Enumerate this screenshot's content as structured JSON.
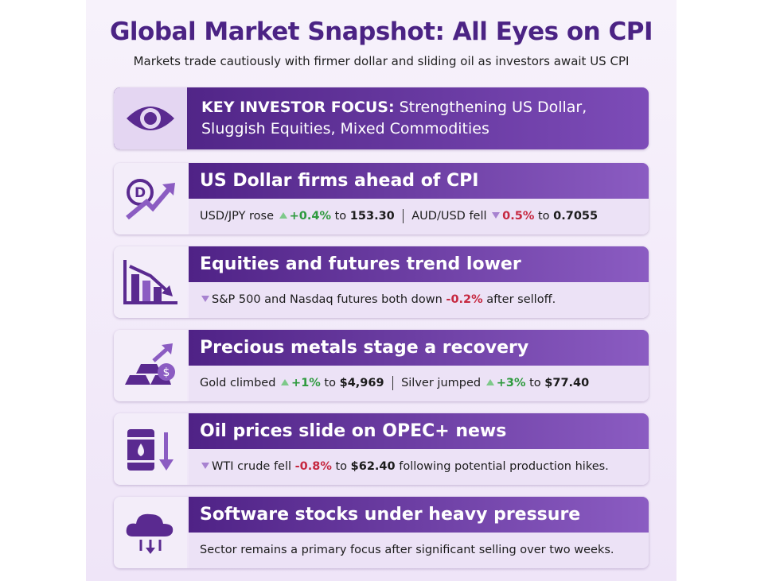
{
  "header": {
    "title": "Global Market Snapshot: All Eyes on CPI",
    "subtitle": "Markets trade cautiously with firmer dollar and sliding oil as investors await US CPI"
  },
  "focus": {
    "label": "KEY INVESTOR FOCUS:",
    "text": "Strengthening US Dollar, Sluggish Equities, Mixed Commodities"
  },
  "sections": [
    {
      "title": "US Dollar firms ahead of CPI",
      "body": [
        [
          {
            "text": "USD/JPY rose ",
            "tone": "plain"
          },
          {
            "text": "+0.4%",
            "tone": "up"
          },
          {
            "text": " to ",
            "tone": "plain"
          },
          {
            "text": "153.30",
            "tone": "bold"
          }
        ],
        [
          {
            "text": "AUD/USD fell ",
            "tone": "plain"
          },
          {
            "text": "0.5%",
            "tone": "down"
          },
          {
            "text": " to ",
            "tone": "plain"
          },
          {
            "text": "0.7055",
            "tone": "bold"
          }
        ]
      ]
    },
    {
      "title": "Equities and futures trend lower",
      "lead": "down",
      "body": [
        [
          {
            "text": "S&P 500 and Nasdaq futures both down ",
            "tone": "plain"
          },
          {
            "text": "-0.2%",
            "tone": "neg"
          },
          {
            "text": " after selloff.",
            "tone": "plain"
          }
        ]
      ]
    },
    {
      "title": "Precious metals stage a recovery",
      "body": [
        [
          {
            "text": "Gold climbed ",
            "tone": "plain"
          },
          {
            "text": "+1%",
            "tone": "up"
          },
          {
            "text": " to ",
            "tone": "plain"
          },
          {
            "text": "$4,969",
            "tone": "bold"
          }
        ],
        [
          {
            "text": "Silver jumped ",
            "tone": "plain"
          },
          {
            "text": "+3%",
            "tone": "up"
          },
          {
            "text": " to ",
            "tone": "plain"
          },
          {
            "text": "$77.40",
            "tone": "bold"
          }
        ]
      ]
    },
    {
      "title": "Oil prices slide on OPEC+ news",
      "lead": "down",
      "body": [
        [
          {
            "text": "WTI crude fell ",
            "tone": "plain"
          },
          {
            "text": "-0.8%",
            "tone": "neg"
          },
          {
            "text": " to ",
            "tone": "plain"
          },
          {
            "text": "$62.40",
            "tone": "bold"
          },
          {
            "text": " following potential production hikes.",
            "tone": "plain"
          }
        ]
      ]
    },
    {
      "title": "Software stocks under heavy pressure",
      "body": [
        [
          {
            "text": "Sector remains a primary focus after significant selling over two weeks.",
            "tone": "plain"
          }
        ]
      ]
    }
  ]
}
